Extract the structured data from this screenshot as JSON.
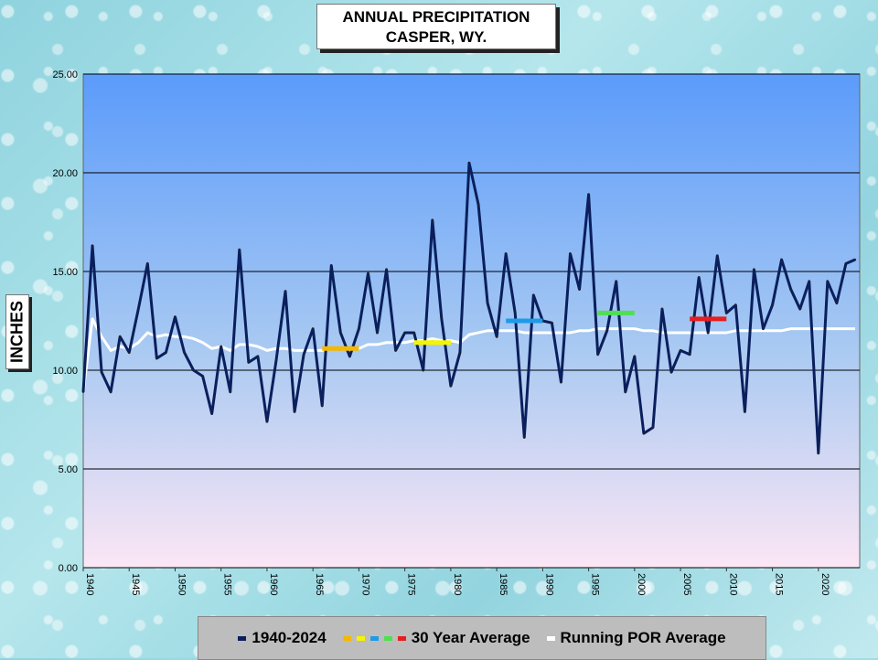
{
  "title_line1": "ANNUAL  PRECIPITATION",
  "title_line2": "CASPER, WY.",
  "ylabel": "INCHES",
  "legend": [
    {
      "label": "1940-2024",
      "colors": [
        "#0a1f5c"
      ]
    },
    {
      "label": "30 Year Average",
      "colors": [
        "#f5b800",
        "#f5f500",
        "#1e9be8",
        "#4fe04f",
        "#e61e1e"
      ]
    },
    {
      "label": "Running POR Average",
      "colors": [
        "#ffffff"
      ]
    }
  ],
  "chart_data": {
    "type": "line",
    "ylim": [
      0,
      25
    ],
    "xlim": [
      1940,
      2024
    ],
    "yticks": [
      "0.00",
      "5.00",
      "10.00",
      "15.00",
      "20.00",
      "25.00"
    ],
    "xticks": [
      "1940",
      "1945",
      "1950",
      "1955",
      "1960",
      "1965",
      "1970",
      "1975",
      "1980",
      "1985",
      "1990",
      "1995",
      "2000",
      "2005",
      "2010",
      "2015",
      "2020"
    ],
    "grid": true,
    "series": [
      {
        "name": "1940-2024",
        "color": "#0a1f5c",
        "x": [
          1940,
          1941,
          1942,
          1943,
          1944,
          1945,
          1946,
          1947,
          1948,
          1949,
          1950,
          1951,
          1952,
          1953,
          1954,
          1955,
          1956,
          1957,
          1958,
          1959,
          1960,
          1961,
          1962,
          1963,
          1964,
          1965,
          1966,
          1967,
          1968,
          1969,
          1970,
          1971,
          1972,
          1973,
          1974,
          1975,
          1976,
          1977,
          1978,
          1979,
          1980,
          1981,
          1982,
          1983,
          1984,
          1985,
          1986,
          1987,
          1988,
          1989,
          1990,
          1991,
          1992,
          1993,
          1994,
          1995,
          1996,
          1997,
          1998,
          1999,
          2000,
          2001,
          2002,
          2003,
          2004,
          2005,
          2006,
          2007,
          2008,
          2009,
          2010,
          2011,
          2012,
          2013,
          2014,
          2015,
          2016,
          2017,
          2018,
          2019,
          2020,
          2021,
          2022,
          2023,
          2024
        ],
        "y": [
          8.9,
          16.3,
          9.9,
          8.9,
          11.7,
          10.9,
          13.1,
          15.4,
          10.6,
          10.9,
          12.7,
          10.9,
          10.0,
          9.7,
          7.8,
          11.2,
          8.9,
          16.1,
          10.4,
          10.7,
          7.4,
          10.5,
          14.0,
          7.9,
          10.8,
          12.1,
          8.2,
          15.3,
          11.9,
          10.7,
          12.1,
          14.9,
          11.9,
          15.1,
          11.0,
          11.9,
          11.9,
          10.0,
          17.6,
          12.6,
          9.2,
          10.9,
          20.5,
          18.4,
          13.4,
          11.7,
          15.9,
          12.9,
          6.6,
          13.8,
          12.5,
          12.4,
          9.4,
          15.9,
          14.1,
          18.9,
          10.8,
          12.0,
          14.5,
          8.9,
          10.7,
          6.8,
          7.1,
          13.1,
          9.9,
          11.0,
          10.8,
          14.7,
          11.9,
          15.8,
          12.9,
          13.3,
          7.9,
          15.1,
          12.1,
          13.3,
          15.6,
          14.1,
          13.1,
          14.5,
          5.8,
          14.5,
          13.4,
          15.4,
          15.6
        ]
      },
      {
        "name": "Running POR Average",
        "color": "#ffffff",
        "x": [
          1940,
          1941,
          1942,
          1943,
          1944,
          1945,
          1946,
          1947,
          1948,
          1949,
          1950,
          1951,
          1952,
          1953,
          1954,
          1955,
          1956,
          1957,
          1958,
          1959,
          1960,
          1961,
          1962,
          1963,
          1964,
          1965,
          1966,
          1967,
          1968,
          1969,
          1970,
          1971,
          1972,
          1973,
          1974,
          1975,
          1976,
          1977,
          1978,
          1979,
          1980,
          1981,
          1982,
          1983,
          1984,
          1985,
          1986,
          1987,
          1988,
          1989,
          1990,
          1991,
          1992,
          1993,
          1994,
          1995,
          1996,
          1997,
          1998,
          1999,
          2000,
          2001,
          2002,
          2003,
          2004,
          2005,
          2006,
          2007,
          2008,
          2009,
          2010,
          2011,
          2012,
          2013,
          2014,
          2015,
          2016,
          2017,
          2018,
          2019,
          2020,
          2021,
          2022,
          2023,
          2024
        ],
        "y": [
          8.9,
          12.6,
          11.7,
          11.0,
          11.2,
          11.1,
          11.4,
          11.9,
          11.7,
          11.8,
          11.7,
          11.7,
          11.6,
          11.4,
          11.1,
          11.2,
          11.0,
          11.3,
          11.3,
          11.2,
          11.0,
          11.1,
          11.1,
          11.0,
          11.0,
          11.0,
          11.0,
          11.1,
          11.1,
          11.1,
          11.1,
          11.3,
          11.3,
          11.4,
          11.4,
          11.4,
          11.5,
          11.5,
          11.6,
          11.5,
          11.5,
          11.4,
          11.8,
          11.9,
          12.0,
          12.0,
          12.0,
          12.0,
          11.9,
          11.9,
          11.9,
          11.9,
          11.9,
          11.9,
          12.0,
          12.0,
          12.1,
          12.1,
          12.1,
          12.1,
          12.1,
          12.0,
          12.0,
          11.9,
          11.9,
          11.9,
          11.9,
          11.9,
          11.9,
          11.9,
          11.9,
          12.0,
          12.0,
          12.0,
          12.0,
          12.0,
          12.0,
          12.1,
          12.1,
          12.1,
          12.1,
          12.1,
          12.1,
          12.1,
          12.1
        ]
      }
    ],
    "averages": [
      {
        "name": "30 Year Average",
        "color": "#f5b800",
        "x": [
          1966,
          1970
        ],
        "y": 11.1
      },
      {
        "name": "30 Year Average",
        "color": "#f5f500",
        "x": [
          1976,
          1980
        ],
        "y": 11.4
      },
      {
        "name": "30 Year Average",
        "color": "#1e9be8",
        "x": [
          1986,
          1990
        ],
        "y": 12.5
      },
      {
        "name": "30 Year Average",
        "color": "#4fe04f",
        "x": [
          1996,
          2000
        ],
        "y": 12.9
      },
      {
        "name": "30 Year Average",
        "color": "#e61e1e",
        "x": [
          2006,
          2010
        ],
        "y": 12.6
      }
    ]
  }
}
